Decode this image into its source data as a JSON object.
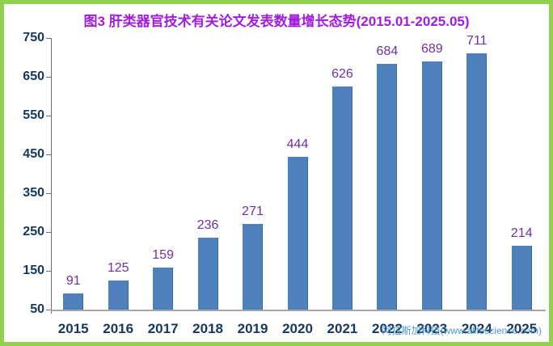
{
  "frame": {
    "border_color": "#92D050",
    "background_color": "#FFFFFF"
  },
  "title": {
    "text": "图3 肝类器官技术有关论文发表数量增长态势(2015.01-2025.05)",
    "color": "#A21CDB"
  },
  "watermark": {
    "text": "阿拉斯加科技(www.alifescience.com)",
    "color": "#4E9AD4"
  },
  "chart_data": {
    "type": "bar",
    "title": "图3 肝类器官技术有关论文发表数量增长态势(2015.01-2025.05)",
    "categories": [
      "2015",
      "2016",
      "2017",
      "2018",
      "2019",
      "2020",
      "2021",
      "2022",
      "2023",
      "2024",
      "2025"
    ],
    "values": [
      91,
      125,
      159,
      236,
      271,
      444,
      626,
      684,
      689,
      711,
      214
    ],
    "xlabel": "",
    "ylabel": "",
    "ylim": [
      50,
      750
    ],
    "yticks": [
      50,
      150,
      250,
      350,
      450,
      550,
      650,
      750
    ],
    "grid": false,
    "legend_position": "none",
    "bar_color": "#4E80BC",
    "bar_edge_color": "#3A689E",
    "value_label_color": "#7030A0",
    "axis_text_color": "#17375E",
    "axis_line_color": "#6E6E6E"
  }
}
